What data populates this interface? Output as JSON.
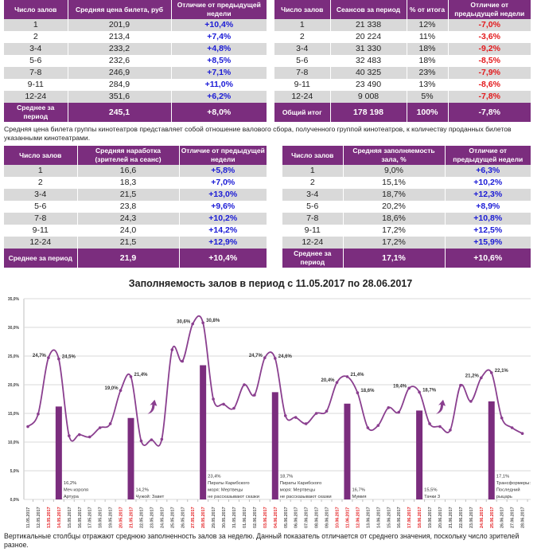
{
  "table_price": {
    "headers": [
      "Число залов",
      "Средняя цена билета, руб",
      "Отличие от предыдущей недели"
    ],
    "rows": [
      [
        "1",
        "201,9",
        "+10,4%"
      ],
      [
        "2",
        "213,4",
        "+7,4%"
      ],
      [
        "3-4",
        "233,2",
        "+4,8%"
      ],
      [
        "5-6",
        "232,6",
        "+8,5%"
      ],
      [
        "7-8",
        "246,9",
        "+7,1%"
      ],
      [
        "9-11",
        "284,9",
        "+11,0%"
      ],
      [
        "12-24",
        "351,6",
        "+6,2%"
      ]
    ],
    "footer": [
      "Среднее за период",
      "245,1",
      "+8,0%"
    ]
  },
  "table_sessions": {
    "headers": [
      "Число залов",
      "Сеансов за период",
      "% от итога",
      "Отличие от предыдущей недели"
    ],
    "rows": [
      [
        "1",
        "21 338",
        "12%",
        "-7,0%"
      ],
      [
        "2",
        "20 224",
        "11%",
        "-3,6%"
      ],
      [
        "3-4",
        "31 330",
        "18%",
        "-9,2%"
      ],
      [
        "5-6",
        "32 483",
        "18%",
        "-8,5%"
      ],
      [
        "7-8",
        "40 325",
        "23%",
        "-7,9%"
      ],
      [
        "9-11",
        "23 490",
        "13%",
        "-8,6%"
      ],
      [
        "12-24",
        "9 008",
        "5%",
        "-7,8%"
      ]
    ],
    "footer": [
      "Общий итог",
      "178 198",
      "100%",
      "-7,8%"
    ]
  },
  "caption_price": "Средняя цена билета группы кинотеатров представляет собой отношение валового сбора, полученного группой кинотеатров, к количеству проданных билетов указанными кинотеатрами.",
  "table_per_session": {
    "headers": [
      "Число залов",
      "Средняя наработка (зрителей на сеанс)",
      "Отличие от предыдущей недели"
    ],
    "rows": [
      [
        "1",
        "16,6",
        "+5,8%"
      ],
      [
        "2",
        "18,3",
        "+7,0%"
      ],
      [
        "3-4",
        "21,5",
        "+13,0%"
      ],
      [
        "5-6",
        "23,8",
        "+9,6%"
      ],
      [
        "7-8",
        "24,3",
        "+10,2%"
      ],
      [
        "9-11",
        "24,0",
        "+14,2%"
      ],
      [
        "12-24",
        "21,5",
        "+12,9%"
      ]
    ],
    "footer": [
      "Среднее за период",
      "21,9",
      "+10,4%"
    ]
  },
  "table_occupancy": {
    "headers": [
      "Число залов",
      "Средняя заполняемость зала, %",
      "Отличие от предыдущей недели"
    ],
    "rows": [
      [
        "1",
        "9,0%",
        "+6,3%"
      ],
      [
        "2",
        "15,1%",
        "+10,2%"
      ],
      [
        "3-4",
        "18,7%",
        "+12,3%"
      ],
      [
        "5-6",
        "20,2%",
        "+8,9%"
      ],
      [
        "7-8",
        "18,6%",
        "+10,8%"
      ],
      [
        "9-11",
        "17,2%",
        "+12,5%"
      ],
      [
        "12-24",
        "17,2%",
        "+15,9%"
      ]
    ],
    "footer": [
      "Среднее за период",
      "17,1%",
      "+10,6%"
    ]
  },
  "colors": {
    "header": "#7b2d7e",
    "positive": "#1b1bd6",
    "negative": "#e3191c",
    "line": "#8a3f8f",
    "bar": "#7b2d7e",
    "weekend_label": "#e3191c"
  },
  "chart_data": {
    "type": "line+bar",
    "title": "Заполняемость залов в период с 11.05.2017 по 28.06.2017",
    "ylim": [
      0,
      35
    ],
    "yticks": [
      "0,0%",
      "5,0%",
      "10,0%",
      "15,0%",
      "20,0%",
      "25,0%",
      "30,0%",
      "35,0%"
    ],
    "grid": true,
    "x": [
      "11.05.2017",
      "12.05.2017",
      "13.05.2017",
      "14.05.2017",
      "15.05.2017",
      "16.05.2017",
      "17.05.2017",
      "18.05.2017",
      "19.05.2017",
      "20.05.2017",
      "21.05.2017",
      "22.05.2017",
      "23.05.2017",
      "24.05.2017",
      "25.05.2017",
      "26.05.2017",
      "27.05.2017",
      "28.05.2017",
      "29.05.2017",
      "30.05.2017",
      "31.05.2017",
      "01.06.2017",
      "02.06.2017",
      "03.06.2017",
      "04.06.2017",
      "05.06.2017",
      "06.06.2017",
      "07.06.2017",
      "08.06.2017",
      "09.06.2017",
      "10.06.2017",
      "11.06.2017",
      "12.06.2017",
      "13.06.2017",
      "14.06.2017",
      "15.06.2017",
      "16.06.2017",
      "17.06.2017",
      "18.06.2017",
      "19.06.2017",
      "20.06.2017",
      "21.06.2017",
      "22.06.2017",
      "23.06.2017",
      "24.06.2017",
      "25.06.2017",
      "26.06.2017",
      "27.06.2017",
      "28.06.2017"
    ],
    "red_dates": [
      "13.05.2017",
      "14.05.2017",
      "20.05.2017",
      "21.05.2017",
      "27.05.2017",
      "28.05.2017",
      "03.06.2017",
      "04.06.2017",
      "10.06.2017",
      "11.06.2017",
      "12.06.2017",
      "17.06.2017",
      "18.06.2017",
      "24.06.2017",
      "25.06.2017"
    ],
    "line_values": [
      12.7,
      14.9,
      24.7,
      24.5,
      11.1,
      11.3,
      10.9,
      12.5,
      13.2,
      19.0,
      21.4,
      10.2,
      10.4,
      10.5,
      26.1,
      24.1,
      30.6,
      30.8,
      17.5,
      16.6,
      15.9,
      20.0,
      18.2,
      24.7,
      24.6,
      14.6,
      14.3,
      13.2,
      15.0,
      15.4,
      20.4,
      21.4,
      18.6,
      12.5,
      12.9,
      16.0,
      15.2,
      19.4,
      18.7,
      13.2,
      12.7,
      12.1,
      19.9,
      17.1,
      21.2,
      22.1,
      14.2,
      12.5,
      11.5
    ],
    "point_labels": [
      {
        "date": "13.05.2017",
        "text": "24,7%"
      },
      {
        "date": "14.05.2017",
        "text": "24,5%"
      },
      {
        "date": "20.05.2017",
        "text": "19,0%"
      },
      {
        "date": "21.05.2017",
        "text": "21,4%"
      },
      {
        "date": "27.05.2017",
        "text": "30,6%"
      },
      {
        "date": "28.05.2017",
        "text": "30,8%"
      },
      {
        "date": "03.06.2017",
        "text": "24,7%"
      },
      {
        "date": "04.06.2017",
        "text": "24,6%"
      },
      {
        "date": "10.06.2017",
        "text": "20,4%"
      },
      {
        "date": "11.06.2017",
        "text": "21,4%"
      },
      {
        "date": "12.06.2017",
        "text": "18,6%"
      },
      {
        "date": "17.06.2017",
        "text": "19,4%"
      },
      {
        "date": "18.06.2017",
        "text": "18,7%"
      },
      {
        "date": "24.06.2017",
        "text": "21,2%"
      },
      {
        "date": "25.06.2017",
        "text": "22,1%"
      }
    ],
    "bars": [
      {
        "date": "14.05.2017",
        "value": 16.2,
        "label": "16,2%",
        "film": [
          "Меч короля",
          "Артура"
        ]
      },
      {
        "date": "21.05.2017",
        "value": 14.2,
        "label": "14,2%",
        "film": [
          "Чужой: Завет"
        ]
      },
      {
        "date": "28.05.2017",
        "value": 23.4,
        "label": "23,4%",
        "film": [
          "Пираты Карибского",
          "моря: Мертвецы",
          "не рассказывают сказки"
        ]
      },
      {
        "date": "04.06.2017",
        "value": 18.7,
        "label": "18,7%",
        "film": [
          "Пираты Карибского",
          "моря: Мертвецы",
          "не рассказывают сказки"
        ]
      },
      {
        "date": "11.06.2017",
        "value": 16.7,
        "label": "16,7%",
        "film": [
          "Мумия"
        ]
      },
      {
        "date": "18.06.2017",
        "value": 15.5,
        "label": "15,5%",
        "film": [
          "Тачки 3"
        ]
      },
      {
        "date": "25.06.2017",
        "value": 17.1,
        "label": "17,1%",
        "film": [
          "Трансформеры:",
          "Последний",
          "рыцарь"
        ]
      }
    ],
    "arrow_icons": [
      "23.05.2017",
      "20.06.2017"
    ]
  },
  "caption_chart": "Вертикальные столбцы отражают среднюю заполненность залов за неделю. Данный показатель отличается от среднего значения, поскольку число зрителей разное."
}
